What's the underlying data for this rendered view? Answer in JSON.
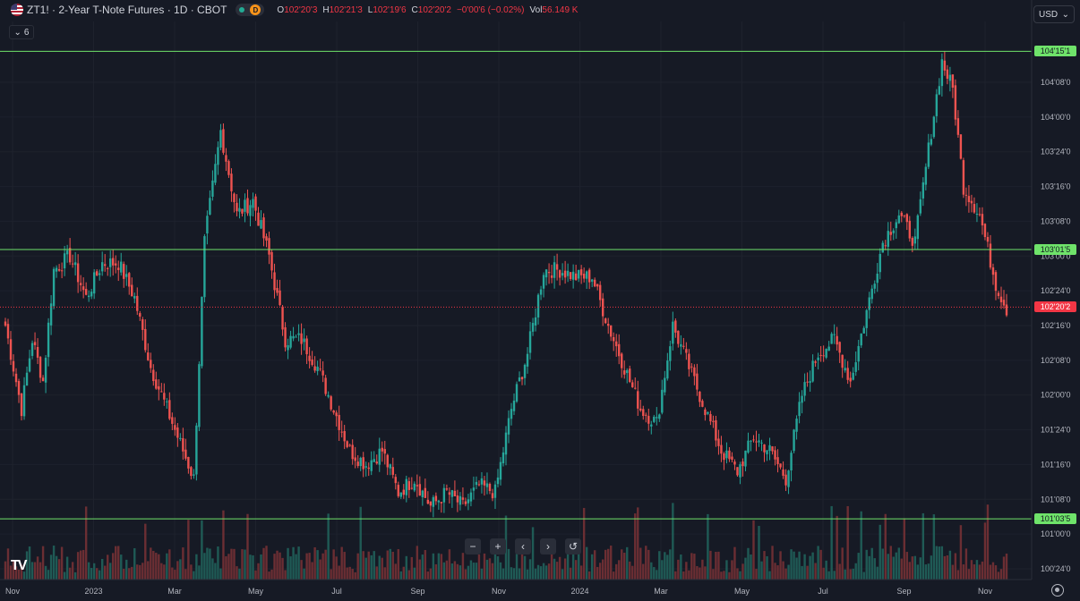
{
  "header": {
    "title": "ZT1! · 2-Year T-Note Futures · 1D · CBOT",
    "market_status": "D",
    "ohlc": [
      {
        "key": "O",
        "value": "102'20'3"
      },
      {
        "key": "H",
        "value": "102'21'3"
      },
      {
        "key": "L",
        "value": "102'19'6"
      },
      {
        "key": "C",
        "value": "102'20'2"
      }
    ],
    "change": "−0'00'6 (−0.02%)",
    "volume_label": "Vol",
    "volume_value": "56.149 K",
    "indicator_count": "6"
  },
  "currency": "USD",
  "colors": {
    "background": "#161a25",
    "up": "#26a69a",
    "down": "#ef5350",
    "level_line": "#6fe36a",
    "last_price": "#f23645"
  },
  "nav_buttons": [
    "−",
    "+",
    "‹",
    "›",
    "↺"
  ],
  "chart_data": {
    "type": "candlestick",
    "x_labels": [
      "Nov",
      "2023",
      "Mar",
      "May",
      "Jul",
      "Sep",
      "Nov",
      "2024",
      "Mar",
      "May",
      "Jul",
      "Sep",
      "Nov"
    ],
    "y_tick_labels": [
      "104'08'0",
      "104'00'0",
      "103'24'0",
      "103'16'0",
      "103'08'0",
      "103'00'0",
      "102'24'0",
      "102'16'0",
      "102'08'0",
      "102'00'0",
      "101'24'0",
      "101'16'0",
      "101'08'0",
      "101'00'0",
      "100'24'0"
    ],
    "y_tick_values": [
      104.25,
      104.0,
      103.75,
      103.5,
      103.25,
      103.0,
      102.75,
      102.5,
      102.25,
      102.0,
      101.75,
      101.5,
      101.25,
      101.0,
      100.75
    ],
    "levels": [
      {
        "label": "104'15'1",
        "value": 104.4727
      },
      {
        "label": "103'01'5",
        "value": 103.0469
      },
      {
        "label": "101'03'5",
        "value": 101.1094
      }
    ],
    "last_price": {
      "label": "102'20'2",
      "value": 102.6328
    },
    "series_anchors": [
      [
        0,
        102.5
      ],
      [
        6,
        101.9
      ],
      [
        10,
        102.4
      ],
      [
        14,
        102.1
      ],
      [
        18,
        102.9
      ],
      [
        24,
        103.0
      ],
      [
        30,
        102.7
      ],
      [
        36,
        102.95
      ],
      [
        42,
        102.95
      ],
      [
        48,
        102.7
      ],
      [
        54,
        102.2
      ],
      [
        60,
        101.9
      ],
      [
        66,
        101.6
      ],
      [
        70,
        101.4
      ],
      [
        74,
        103.1
      ],
      [
        80,
        103.9
      ],
      [
        86,
        103.3
      ],
      [
        92,
        103.4
      ],
      [
        98,
        103.0
      ],
      [
        104,
        102.4
      ],
      [
        110,
        102.4
      ],
      [
        116,
        102.2
      ],
      [
        122,
        101.9
      ],
      [
        128,
        101.6
      ],
      [
        134,
        101.5
      ],
      [
        140,
        101.6
      ],
      [
        146,
        101.3
      ],
      [
        152,
        101.4
      ],
      [
        158,
        101.2
      ],
      [
        164,
        101.3
      ],
      [
        170,
        101.2
      ],
      [
        176,
        101.35
      ],
      [
        182,
        101.3
      ],
      [
        188,
        101.9
      ],
      [
        194,
        102.3
      ],
      [
        200,
        102.9
      ],
      [
        206,
        102.9
      ],
      [
        212,
        102.85
      ],
      [
        218,
        102.85
      ],
      [
        224,
        102.5
      ],
      [
        230,
        102.2
      ],
      [
        236,
        101.9
      ],
      [
        242,
        101.8
      ],
      [
        248,
        102.5
      ],
      [
        254,
        102.2
      ],
      [
        260,
        101.9
      ],
      [
        266,
        101.6
      ],
      [
        272,
        101.45
      ],
      [
        278,
        101.7
      ],
      [
        284,
        101.6
      ],
      [
        290,
        101.4
      ],
      [
        296,
        102.0
      ],
      [
        302,
        102.3
      ],
      [
        308,
        102.4
      ],
      [
        314,
        102.1
      ],
      [
        320,
        102.6
      ],
      [
        326,
        103.1
      ],
      [
        332,
        103.3
      ],
      [
        338,
        103.1
      ],
      [
        344,
        103.9
      ],
      [
        348,
        104.4
      ],
      [
        352,
        104.2
      ],
      [
        356,
        103.5
      ],
      [
        362,
        103.3
      ],
      [
        368,
        102.8
      ],
      [
        372,
        102.62
      ]
    ]
  }
}
